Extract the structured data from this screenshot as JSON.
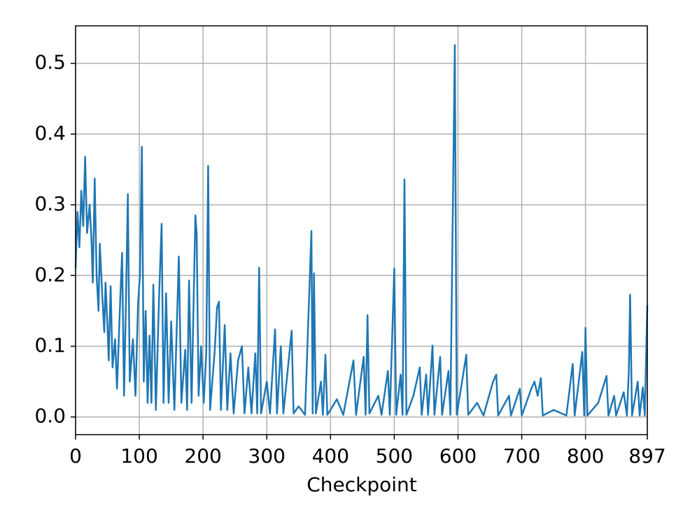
{
  "chart_data": {
    "type": "line",
    "xlabel": "Checkpoint",
    "xlim": [
      0,
      897
    ],
    "ylim": [
      -0.025,
      0.553
    ],
    "xticks": [
      0,
      100,
      200,
      300,
      400,
      500,
      600,
      700,
      800,
      897
    ],
    "yticks": [
      {
        "value": 0,
        "label": "0.0"
      },
      0.1,
      0.2,
      0.3,
      0.4,
      0.5
    ],
    "grid": true,
    "series": [
      {
        "color": "#1f77b4",
        "x": [
          0,
          3,
          6,
          9,
          12,
          15,
          18,
          22,
          25,
          27,
          30,
          33,
          36,
          38,
          42,
          45,
          47,
          50,
          52,
          55,
          58,
          62,
          65,
          70,
          73,
          76,
          79,
          82,
          85,
          90,
          94,
          98,
          101,
          104,
          107,
          110,
          113,
          116,
          119,
          122,
          126,
          131,
          135,
          138,
          142,
          146,
          150,
          155,
          162,
          166,
          172,
          175,
          178,
          182,
          186,
          188,
          190,
          193,
          197,
          201,
          205,
          208,
          211,
          218,
          222,
          225,
          228,
          234,
          238,
          243,
          248,
          255,
          261,
          265,
          271,
          276,
          282,
          285,
          288,
          291,
          300,
          305,
          313,
          316,
          322,
          326,
          339,
          342,
          350,
          360,
          370,
          372,
          374,
          377,
          385,
          388,
          392,
          395,
          410,
          420,
          436,
          440,
          452,
          455,
          458,
          461,
          475,
          480,
          490,
          493,
          500,
          503,
          510,
          513,
          516,
          519,
          530,
          540,
          543,
          550,
          553,
          560,
          563,
          572,
          575,
          585,
          588,
          595,
          598,
          613,
          616,
          630,
          640,
          655,
          660,
          663,
          680,
          683,
          697,
          700,
          715,
          720,
          725,
          730,
          733,
          750,
          770,
          780,
          783,
          795,
          798,
          800,
          803,
          820,
          833,
          836,
          845,
          848,
          860,
          865,
          868,
          870,
          873,
          882,
          885,
          890,
          893,
          897
        ],
        "values": [
          0.21,
          0.29,
          0.24,
          0.32,
          0.27,
          0.368,
          0.26,
          0.3,
          0.25,
          0.19,
          0.337,
          0.2,
          0.15,
          0.245,
          0.17,
          0.12,
          0.19,
          0.13,
          0.08,
          0.185,
          0.07,
          0.11,
          0.04,
          0.165,
          0.232,
          0.03,
          0.16,
          0.315,
          0.05,
          0.11,
          0.03,
          0.16,
          0.2,
          0.382,
          0.05,
          0.15,
          0.02,
          0.115,
          0.02,
          0.187,
          0.01,
          0.17,
          0.273,
          0.02,
          0.175,
          0.02,
          0.135,
          0.01,
          0.227,
          0.02,
          0.095,
          0.01,
          0.193,
          0.02,
          0.2,
          0.285,
          0.26,
          0.03,
          0.1,
          0.02,
          0.09,
          0.355,
          0.01,
          0.09,
          0.155,
          0.163,
          0.01,
          0.13,
          0.01,
          0.09,
          0.005,
          0.08,
          0.1,
          0.005,
          0.07,
          0.005,
          0.09,
          0.005,
          0.211,
          0.005,
          0.05,
          0.005,
          0.124,
          0.005,
          0.1,
          0.005,
          0.122,
          0.005,
          0.015,
          0.003,
          0.263,
          0.005,
          0.203,
          0.005,
          0.05,
          0.003,
          0.088,
          0.003,
          0.025,
          0.003,
          0.08,
          0.003,
          0.085,
          0.003,
          0.144,
          0.005,
          0.03,
          0.003,
          0.065,
          0.003,
          0.21,
          0.003,
          0.06,
          0.003,
          0.336,
          0.003,
          0.03,
          0.07,
          0.003,
          0.06,
          0.003,
          0.101,
          0.003,
          0.085,
          0.003,
          0.065,
          0.003,
          0.526,
          0.003,
          0.088,
          0.003,
          0.02,
          0.002,
          0.05,
          0.06,
          0.002,
          0.03,
          0.002,
          0.04,
          0.002,
          0.04,
          0.05,
          0.03,
          0.055,
          0.002,
          0.01,
          0.002,
          0.075,
          0.002,
          0.092,
          0.002,
          0.126,
          0.002,
          0.02,
          0.058,
          0.002,
          0.03,
          0.002,
          0.035,
          0.002,
          0.065,
          0.173,
          0.002,
          0.05,
          0.002,
          0.042,
          0.002,
          0.158
        ]
      }
    ]
  }
}
